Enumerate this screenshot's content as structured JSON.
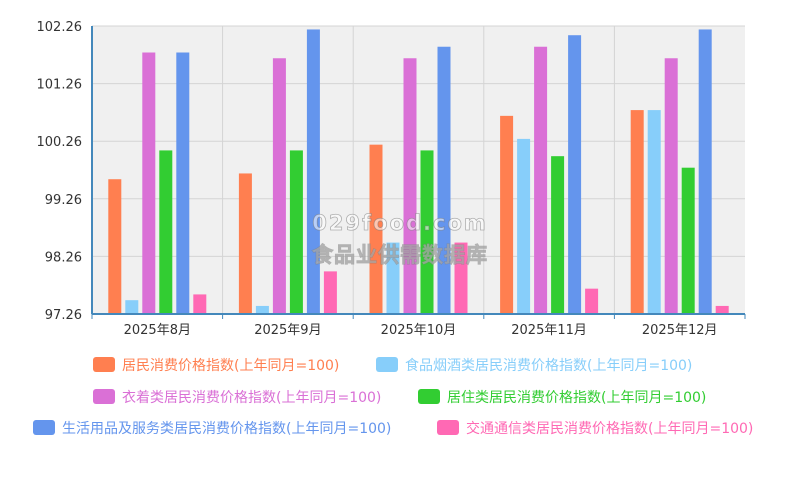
{
  "chart_data": {
    "type": "bar",
    "categories": [
      "2025年8月",
      "2025年9月",
      "2025年10月",
      "2025年11月",
      "2025年12月"
    ],
    "ylim": [
      97.26,
      102.26
    ],
    "yticks": [
      "97.26",
      "98.26",
      "99.26",
      "100.26",
      "101.26",
      "102.26"
    ],
    "grid": true,
    "legend_position": "bottom",
    "series": [
      {
        "name": "居民消费价格指数(上年同月=100)",
        "color": "#ff7f50",
        "values": [
          99.6,
          99.7,
          100.2,
          100.7,
          100.8
        ]
      },
      {
        "name": "食品烟酒类居民消费价格指数(上年同月=100)",
        "color": "#87cefa",
        "values": [
          97.5,
          97.4,
          98.5,
          100.3,
          100.8
        ]
      },
      {
        "name": "衣着类居民消费价格指数(上年同月=100)",
        "color": "#da70d6",
        "values": [
          101.8,
          101.7,
          101.7,
          101.9,
          101.7
        ]
      },
      {
        "name": "居住类居民消费价格指数(上年同月=100)",
        "color": "#32cd32",
        "values": [
          100.1,
          100.1,
          100.1,
          100.0,
          99.8
        ]
      },
      {
        "name": "生活用品及服务类居民消费价格指数(上年同月=100)",
        "color": "#6495ed",
        "values": [
          101.8,
          102.2,
          101.9,
          102.1,
          102.2
        ]
      },
      {
        "name": "交通通信类居民消费价格指数(上年同月=100)",
        "color": "#ff69b4",
        "values": [
          97.6,
          98.0,
          98.5,
          97.7,
          97.4
        ]
      }
    ]
  },
  "watermark": {
    "line1": "029food.com",
    "line2": "食品业供需数据库"
  }
}
